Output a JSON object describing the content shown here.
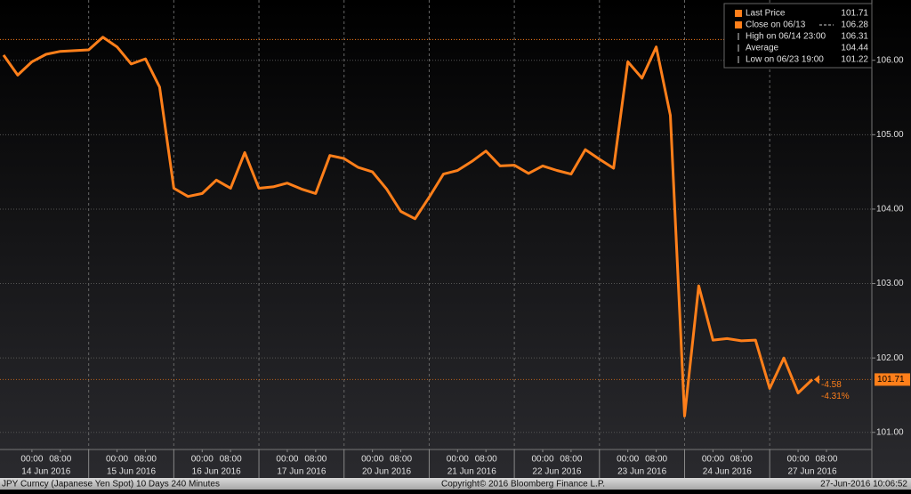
{
  "chart_data": {
    "type": "line",
    "series": [
      {
        "name": "Last Price",
        "color": "#ff7f1a",
        "values": [
          106.07,
          105.8,
          105.98,
          106.08,
          106.12,
          106.13,
          106.14,
          106.31,
          106.18,
          105.95,
          106.02,
          105.64,
          104.28,
          104.17,
          104.21,
          104.39,
          104.28,
          104.76,
          104.28,
          104.3,
          104.35,
          104.27,
          104.21,
          104.72,
          104.68,
          104.56,
          104.5,
          104.27,
          103.97,
          103.87,
          104.16,
          104.47,
          104.52,
          104.64,
          104.78,
          104.58,
          104.59,
          104.48,
          104.58,
          104.52,
          104.47,
          104.8,
          104.67,
          104.55,
          105.98,
          105.76,
          106.18,
          105.26,
          101.22,
          102.97,
          102.24,
          102.26,
          102.23,
          102.24,
          101.59,
          102.0,
          101.53,
          101.71
        ]
      }
    ],
    "xlim": [
      -0.25,
      61.2
    ],
    "ylim": [
      100.77,
      106.81
    ],
    "yticks": [
      {
        "value": 101,
        "label": "101.00"
      },
      {
        "value": 102,
        "label": "102.00"
      },
      {
        "value": 103,
        "label": "103.00"
      },
      {
        "value": 104,
        "label": "104.00"
      },
      {
        "value": 105,
        "label": "105.00"
      },
      {
        "value": 106,
        "label": "106.00"
      }
    ],
    "xticks": [
      {
        "value": 2,
        "label": "00:00"
      },
      {
        "value": 4,
        "label": "08:00"
      },
      {
        "value": 8,
        "label": "00:00"
      },
      {
        "value": 10,
        "label": "08:00"
      },
      {
        "value": 14,
        "label": "00:00"
      },
      {
        "value": 16,
        "label": "08:00"
      },
      {
        "value": 20,
        "label": "00:00"
      },
      {
        "value": 22,
        "label": "08:00"
      },
      {
        "value": 26,
        "label": "00:00"
      },
      {
        "value": 28,
        "label": "08:00"
      },
      {
        "value": 32,
        "label": "00:00"
      },
      {
        "value": 34,
        "label": "08:00"
      },
      {
        "value": 38,
        "label": "00:00"
      },
      {
        "value": 40,
        "label": "08:00"
      },
      {
        "value": 44,
        "label": "00:00"
      },
      {
        "value": 46,
        "label": "08:00"
      },
      {
        "value": 50,
        "label": "00:00"
      },
      {
        "value": 52,
        "label": "08:00"
      },
      {
        "value": 56,
        "label": "00:00"
      },
      {
        "value": 58,
        "label": "08:00"
      }
    ],
    "day_labels": [
      {
        "value": 3,
        "label": "14 Jun 2016"
      },
      {
        "value": 9,
        "label": "15 Jun 2016"
      },
      {
        "value": 15,
        "label": "16 Jun 2016"
      },
      {
        "value": 21,
        "label": "17 Jun 2016"
      },
      {
        "value": 27,
        "label": "20 Jun 2016"
      },
      {
        "value": 33,
        "label": "21 Jun 2016"
      },
      {
        "value": 39,
        "label": "22 Jun 2016"
      },
      {
        "value": 45,
        "label": "23 Jun 2016"
      },
      {
        "value": 51,
        "label": "24 Jun 2016"
      },
      {
        "value": 57,
        "label": "27 Jun 2016"
      }
    ],
    "legend": [
      {
        "label": "Last Price",
        "value": 101.71
      },
      {
        "label": "Close on 06/13",
        "value": 106.28
      },
      {
        "label": "High on 06/14 23:00",
        "value": 106.31
      },
      {
        "label": "Average",
        "value": 104.44
      },
      {
        "label": "Low on 06/23 19:00",
        "value": 101.22
      }
    ],
    "net_change": -4.58,
    "pct_change": {
      "value": -4.31,
      "label": "-4.31%"
    },
    "footer": {
      "left": "JPY Curncy (Japanese Yen Spot) 10 Days 240 Minutes",
      "center": "Copyright© 2016 Bloomberg Finance L.P.",
      "right": "27-Jun-2016 10:06:52"
    }
  }
}
